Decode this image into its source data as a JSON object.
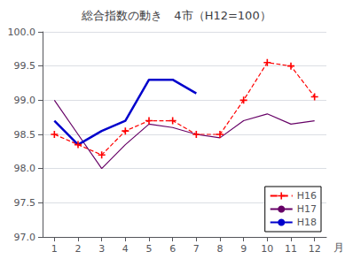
{
  "chart_data": {
    "type": "line",
    "title": "総合指数の動き　4市（H12=100）",
    "xlabel": "月",
    "x": [
      1,
      2,
      3,
      4,
      5,
      6,
      7,
      8,
      9,
      10,
      11,
      12
    ],
    "xlim": [
      0.5,
      12.5
    ],
    "xticks": [
      1,
      2,
      3,
      4,
      5,
      6,
      7,
      8,
      9,
      10,
      11,
      12
    ],
    "ylim": [
      97.0,
      100.0
    ],
    "yticks": [
      {
        "value": 97.0,
        "label": "97.0"
      },
      97.5,
      {
        "value": 98.0,
        "label": "98.0"
      },
      98.5,
      {
        "value": 99.0,
        "label": "99.0"
      },
      99.5,
      {
        "value": 100.0,
        "label": "100.0"
      }
    ],
    "grid": true,
    "legend": "lower right",
    "series": [
      {
        "name": "H16",
        "color": "#ff0000",
        "line_style": "dashed",
        "marker": "plus",
        "values": [
          98.5,
          98.35,
          98.2,
          98.55,
          98.7,
          98.7,
          98.5,
          98.5,
          99.0,
          99.55,
          99.5,
          99.05
        ]
      },
      {
        "name": "H17",
        "color": "#660066",
        "line_style": "solid",
        "marker": "none",
        "values": [
          99.0,
          98.5,
          98.0,
          98.35,
          98.65,
          98.6,
          98.5,
          98.45,
          98.7,
          98.8,
          98.65,
          98.7
        ]
      },
      {
        "name": "H18",
        "color": "#0000cc",
        "line_style": "solid",
        "marker": "none",
        "values": [
          98.7,
          98.35,
          98.55,
          98.7,
          99.3,
          99.3,
          99.1,
          null,
          null,
          null,
          null,
          null
        ]
      }
    ]
  }
}
